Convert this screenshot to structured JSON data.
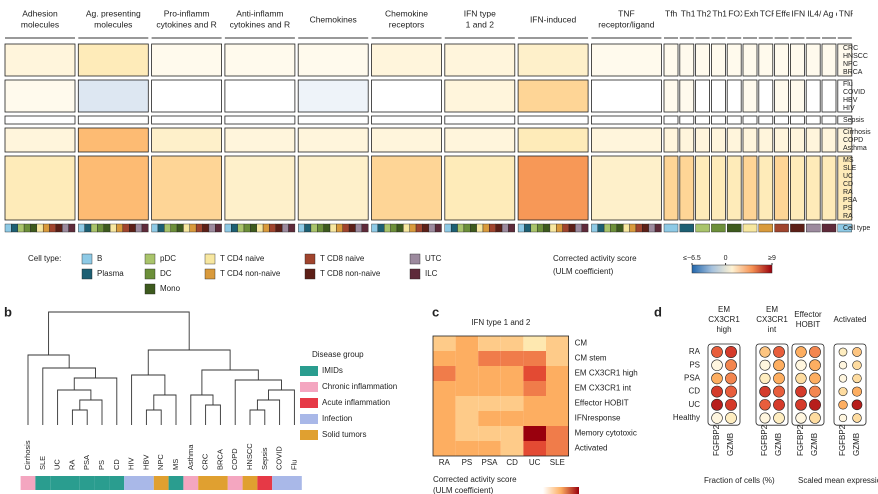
{
  "panel_labels": [
    "b",
    "c",
    "d"
  ],
  "chart_data": [
    {
      "type": "heatmap",
      "columns": [
        [
          "Adhesion",
          "molecules"
        ],
        [
          "Ag. presenting",
          "molecules"
        ],
        [
          "Pro-inflamm",
          "cytokines and R"
        ],
        [
          "Anti-inflamm",
          "cytokines and R"
        ],
        [
          "Chemokines"
        ],
        [
          "Chemokine",
          "receptors"
        ],
        [
          "IFN type",
          "1 and 2"
        ],
        [
          "IFN-induced"
        ],
        [
          "TNF",
          "receptor/ligand"
        ],
        [
          "Tfh"
        ],
        [
          "Th1"
        ],
        [
          "Th2"
        ],
        [
          "Th17"
        ],
        [
          "FOXP3"
        ],
        [
          "Exhausti"
        ],
        [
          "TCR activ"
        ],
        [
          "Effector"
        ],
        [
          "IFNG res"
        ],
        [
          "IL4/13 res"
        ],
        [
          "Ag cross"
        ],
        [
          "TNF via N"
        ]
      ],
      "row_blocks": [
        {
          "rows": [
            "CRC",
            "HNSCC",
            "NPC",
            "BRCA"
          ],
          "values": [
            1,
            2,
            0.5,
            0.5,
            0.5,
            1,
            1,
            1.5,
            0.5,
            0.5,
            0.5,
            0.5,
            0.5,
            0.5,
            0.5,
            0.5,
            0.5,
            0.5,
            0.5,
            0.5,
            0.5
          ]
        },
        {
          "rows": [
            "Flu",
            "COVID",
            "HBV",
            "HIV"
          ],
          "values": [
            0.5,
            -1,
            0,
            0,
            -0.5,
            0,
            1,
            3,
            0,
            0.5,
            0.5,
            0,
            0,
            0,
            0.5,
            0,
            0.5,
            0.5,
            0,
            0,
            0
          ]
        },
        {
          "rows": [
            "Sepsis"
          ],
          "values": [
            0,
            0,
            0,
            0,
            0,
            0,
            0,
            0,
            0,
            0,
            0,
            0,
            0,
            0,
            0,
            0,
            0,
            0,
            0,
            0,
            0
          ]
        },
        {
          "rows": [
            "Cirrhosis",
            "COPD",
            "Asthma"
          ],
          "values": [
            1,
            4,
            1.5,
            1,
            1,
            1,
            1,
            2,
            1,
            1,
            1,
            1,
            1,
            1,
            1,
            1,
            1,
            1,
            1,
            1,
            1
          ]
        },
        {
          "rows": [
            "MS",
            "SLE",
            "UC",
            "CD",
            "RA",
            "PSA",
            "PS",
            "RA"
          ],
          "values": [
            2,
            4,
            3,
            1.5,
            1.5,
            3,
            2,
            5,
            1.5,
            3,
            3,
            2,
            2,
            2,
            3,
            2,
            3,
            2,
            2,
            2,
            2
          ]
        }
      ],
      "row_footer": "Cell type",
      "clim": [
        -6.5,
        9
      ],
      "cticks": [
        {
          "value": -6.5,
          "label": "≤−6.5"
        },
        0,
        {
          "value": 9,
          "label": "≥9"
        }
      ],
      "colorbar_title": [
        "Corrected activity score",
        "(ULM coefficient)"
      ],
      "legend_title": "Cell type:",
      "cell_types": [
        {
          "name": "B",
          "color": "#8ecae6"
        },
        {
          "name": "Plasma",
          "color": "#1d5f73"
        },
        {
          "name": "pDC",
          "color": "#a9c46b"
        },
        {
          "name": "DC",
          "color": "#6c8f3a"
        },
        {
          "name": "Mono",
          "color": "#3d5a1e"
        },
        {
          "name": "T CD4 naive",
          "color": "#f7e7a0"
        },
        {
          "name": "T CD4 non-naive",
          "color": "#d99a3c"
        },
        {
          "name": "T CD8 naive",
          "color": "#a0442d"
        },
        {
          "name": "T CD8 non-naive",
          "color": "#5c1f17"
        },
        {
          "name": "UTC",
          "color": "#9c8a9e"
        },
        {
          "name": "ILC",
          "color": "#5e2a3a"
        }
      ]
    },
    {
      "type": "dendrogram",
      "leaves": [
        "Cirrhosis",
        "SLE",
        "UC",
        "RA",
        "PSA",
        "PS",
        "CD",
        "HIV",
        "HBV",
        "NPC",
        "MS",
        "Asthma",
        "CRC",
        "BRCA",
        "COPD",
        "HNSCC",
        "Sepsis",
        "COVID",
        "Flu"
      ],
      "leaf_groups": [
        1,
        0,
        0,
        0,
        0,
        0,
        0,
        3,
        3,
        4,
        0,
        1,
        4,
        4,
        1,
        4,
        2,
        3,
        3
      ],
      "legend_title": "Disease group",
      "groups": [
        {
          "name": "IMIDs",
          "color": "#2a9d8f"
        },
        {
          "name": "Chronic inflammation",
          "color": "#f4a6c0"
        },
        {
          "name": "Acute inflammation",
          "color": "#e63946"
        },
        {
          "name": "Infection",
          "color": "#a9b8e8"
        },
        {
          "name": "Solid tumors",
          "color": "#e0a030"
        }
      ]
    },
    {
      "type": "heatmap",
      "title": "IFN type 1 and 2",
      "categories": [
        "RA",
        "PS",
        "PSA",
        "CD",
        "UC",
        "SLE"
      ],
      "rows": [
        "CM",
        "CM stem",
        "EM CX3CR1 high",
        "EM CX3CR1 int",
        "Effector HOBIT",
        "IFNresponse",
        "Memory cytotoxic",
        "Activated"
      ],
      "values": [
        [
          3,
          4,
          3,
          3,
          2,
          3
        ],
        [
          4,
          4,
          5,
          5,
          5,
          3
        ],
        [
          5,
          4,
          4,
          4,
          6,
          4
        ],
        [
          4,
          4,
          4,
          4,
          5,
          4
        ],
        [
          4,
          3,
          3,
          3,
          4,
          4
        ],
        [
          4,
          3,
          4,
          4,
          4,
          4
        ],
        [
          4,
          3,
          3,
          3,
          8,
          5
        ],
        [
          4,
          4,
          4,
          3,
          6,
          5
        ]
      ],
      "clim": [
        0,
        8
      ],
      "colorbar_title": [
        "Corrected activity score",
        "(ULM coefficient)"
      ]
    },
    {
      "type": "dotplot",
      "rows": [
        "RA",
        "PS",
        "PSA",
        "CD",
        "UC",
        "Healthy"
      ],
      "color_lim": [
        0,
        1
      ],
      "size_lim": [
        0,
        100
      ],
      "groups": [
        {
          "name": [
            "EM",
            "CX3CR1",
            "high"
          ],
          "series": [
            {
              "name": "FGFBP2",
              "values": [
                0.7,
                0.1,
                0.5,
                0.8,
                0.9,
                0.1
              ],
              "sizes": [
                90,
                85,
                88,
                92,
                92,
                85
              ]
            },
            {
              "name": "GZMB",
              "values": [
                0.8,
                0.6,
                0.6,
                0.7,
                0.8,
                0.2
              ],
              "sizes": [
                95,
                92,
                93,
                95,
                95,
                90
              ]
            }
          ]
        },
        {
          "name": [
            "EM",
            "CX3CR1",
            "int"
          ],
          "series": [
            {
              "name": "FGFBP2",
              "values": [
                0.4,
                0.1,
                0.2,
                0.8,
                0.7,
                0.1
              ],
              "sizes": [
                80,
                75,
                78,
                85,
                85,
                75
              ]
            },
            {
              "name": "GZMB",
              "values": [
                0.7,
                0.5,
                0.5,
                0.7,
                0.8,
                0.2
              ],
              "sizes": [
                92,
                90,
                90,
                93,
                93,
                88
              ]
            }
          ]
        },
        {
          "name": [
            "Effector",
            "HOBIT"
          ],
          "series": [
            {
              "name": "FGFBP2",
              "values": [
                0.5,
                0.1,
                0.3,
                0.8,
                0.8,
                0.1
              ],
              "sizes": [
                85,
                80,
                82,
                88,
                90,
                80
              ]
            },
            {
              "name": "GZMB",
              "values": [
                0.6,
                0.5,
                0.5,
                0.6,
                0.9,
                0.3
              ],
              "sizes": [
                93,
                90,
                90,
                92,
                95,
                88
              ]
            }
          ]
        },
        {
          "name": [
            "Activated"
          ],
          "series": [
            {
              "name": "FGFBP2",
              "values": [
                0.2,
                0.1,
                0.1,
                0.3,
                0.5,
                0.1
              ],
              "sizes": [
                40,
                35,
                35,
                45,
                50,
                35
              ]
            },
            {
              "name": "GZMB",
              "values": [
                0.4,
                0.3,
                0.3,
                0.5,
                0.9,
                0.3
              ],
              "sizes": [
                55,
                50,
                50,
                60,
                70,
                50
              ]
            }
          ]
        }
      ],
      "size_legend_title": "Fraction of cells (%)",
      "color_legend_title": "Scaled mean expression"
    }
  ]
}
